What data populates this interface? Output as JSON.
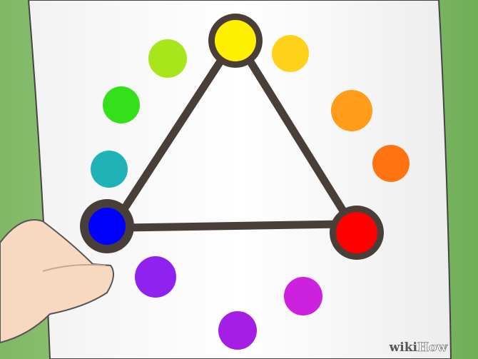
{
  "watermark": [
    "wiki",
    "How"
  ]
}
